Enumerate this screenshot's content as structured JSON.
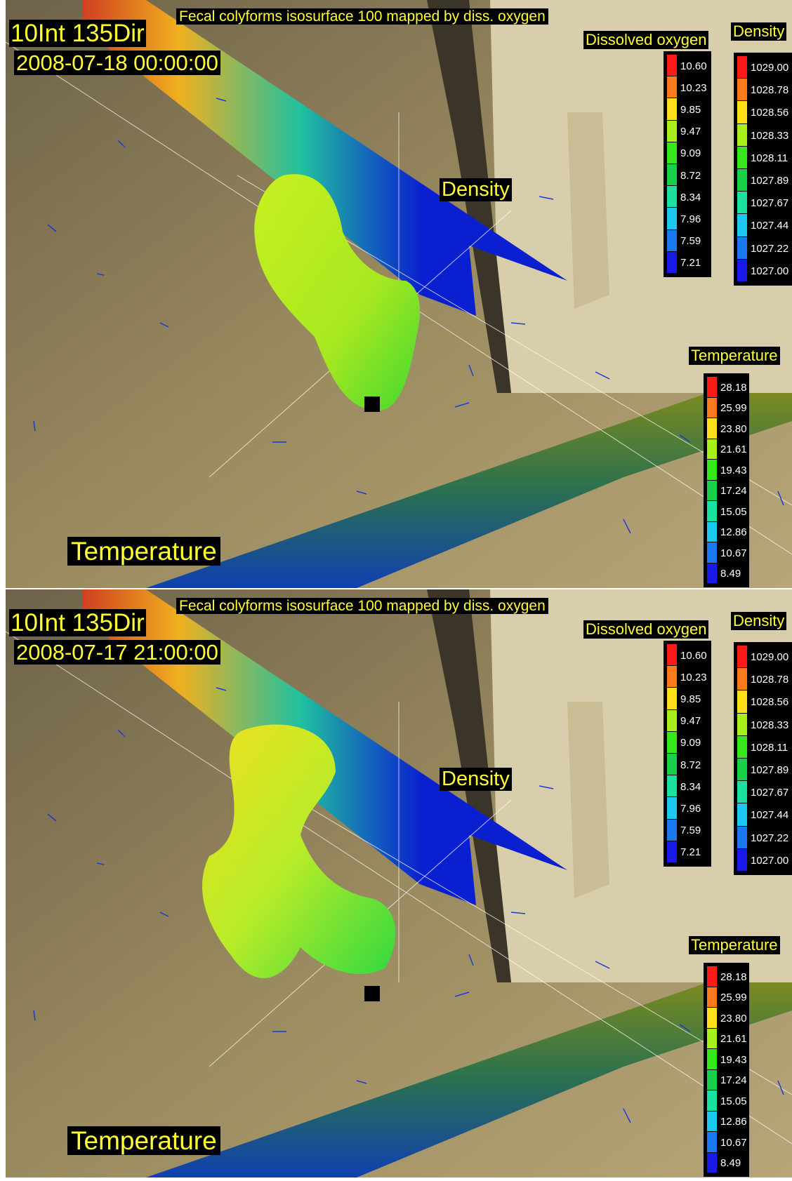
{
  "panels": [
    {
      "title": "Fecal colyforms isosurface 100 mapped by diss. oxygen",
      "run_id": "10Int 135Dir",
      "timestamp": "2008-07-18 00:00:00",
      "density_tag": "Density",
      "temperature_tag": "Temperature"
    },
    {
      "title": "Fecal colyforms isosurface 100 mapped by diss. oxygen",
      "run_id": "10Int 135Dir",
      "timestamp": "2008-07-17 21:00:00",
      "density_tag": "Density",
      "temperature_tag": "Temperature"
    }
  ],
  "legends": {
    "dissolved_oxygen": {
      "title": "Dissolved oxygen",
      "values": [
        "10.60",
        "10.23",
        "9.85",
        "9.47",
        "9.09",
        "8.72",
        "8.34",
        "7.96",
        "7.59",
        "7.21"
      ]
    },
    "density": {
      "title": "Density",
      "values": [
        "1029.00",
        "1028.78",
        "1028.56",
        "1028.33",
        "1028.11",
        "1027.89",
        "1027.67",
        "1027.44",
        "1027.22",
        "1027.00"
      ]
    },
    "temperature": {
      "title": "Temperature",
      "values": [
        "28.18",
        "25.99",
        "23.80",
        "21.61",
        "19.43",
        "17.24",
        "15.05",
        "12.86",
        "10.67",
        "8.49"
      ]
    }
  },
  "colors": {
    "scale": [
      "#ff1a1a",
      "#ff7a1a",
      "#ffe01a",
      "#a8f01a",
      "#35e81a",
      "#18d04a",
      "#1ae0a0",
      "#1ac8f0",
      "#1a78f0",
      "#1a1ae8"
    ],
    "label_text": "#ffff33",
    "floor": "#a08d5f",
    "wall": "#dcd2b0",
    "density_slab": "#0a14c8"
  }
}
